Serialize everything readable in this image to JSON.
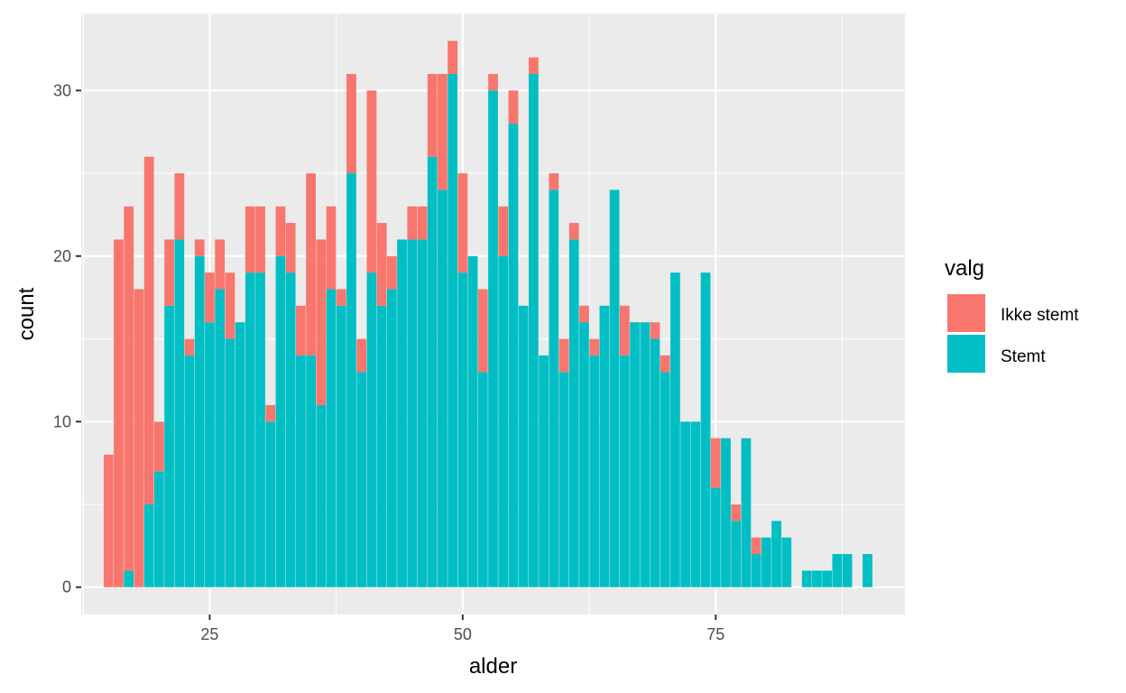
{
  "chart_data": {
    "type": "bar",
    "stacked": true,
    "xlabel": "alder",
    "ylabel": "count",
    "xlim": [
      12.3,
      93.7
    ],
    "ylim": [
      -1.65,
      34.65
    ],
    "x_ticks": [
      25,
      50,
      75
    ],
    "y_ticks": [
      0,
      10,
      20,
      30
    ],
    "grid": true,
    "legend": {
      "title": "valg",
      "position": "right"
    },
    "bin_width": 0.96,
    "x": [
      15,
      16,
      17,
      18,
      19,
      20,
      21,
      22,
      23,
      24,
      25,
      26,
      27,
      28,
      29,
      30,
      31,
      32,
      33,
      34,
      35,
      36,
      37,
      38,
      39,
      40,
      41,
      42,
      43,
      44,
      45,
      46,
      47,
      48,
      49,
      50,
      51,
      52,
      53,
      54,
      55,
      56,
      57,
      58,
      59,
      60,
      61,
      62,
      63,
      64,
      65,
      66,
      67,
      68,
      69,
      70,
      71,
      72,
      73,
      74,
      75,
      76,
      77,
      78,
      79,
      80,
      81,
      82,
      83,
      84,
      85,
      86,
      87,
      88,
      89,
      90
    ],
    "series": [
      {
        "name": "Ikke stemt",
        "color": "#F8766D",
        "values": [
          8,
          21,
          22,
          18,
          21,
          3,
          4,
          4,
          1,
          1,
          3,
          3,
          4,
          0,
          4,
          4,
          1,
          3,
          3,
          3,
          11,
          10,
          5,
          1,
          6,
          2,
          11,
          5,
          2,
          0,
          2,
          2,
          5,
          7,
          2,
          6,
          0,
          5,
          1,
          3,
          2,
          0,
          1,
          0,
          1,
          2,
          1,
          1,
          1,
          0,
          0,
          3,
          0,
          0,
          1,
          1,
          0,
          0,
          0,
          0,
          3,
          0,
          1,
          0,
          1,
          0,
          0,
          0,
          0,
          0,
          0,
          0,
          0,
          0,
          0,
          0
        ]
      },
      {
        "name": "Stemt",
        "color": "#00BFC4",
        "values": [
          0,
          0,
          1,
          0,
          5,
          7,
          17,
          21,
          14,
          20,
          16,
          18,
          15,
          16,
          19,
          19,
          10,
          20,
          19,
          14,
          14,
          11,
          18,
          17,
          25,
          13,
          19,
          17,
          18,
          21,
          21,
          21,
          26,
          24,
          31,
          19,
          20,
          13,
          30,
          20,
          28,
          17,
          31,
          14,
          24,
          13,
          21,
          16,
          14,
          17,
          24,
          14,
          16,
          16,
          15,
          13,
          19,
          10,
          10,
          19,
          6,
          9,
          4,
          9,
          2,
          3,
          4,
          3,
          0,
          1,
          1,
          1,
          2,
          2,
          0,
          2
        ]
      }
    ]
  }
}
